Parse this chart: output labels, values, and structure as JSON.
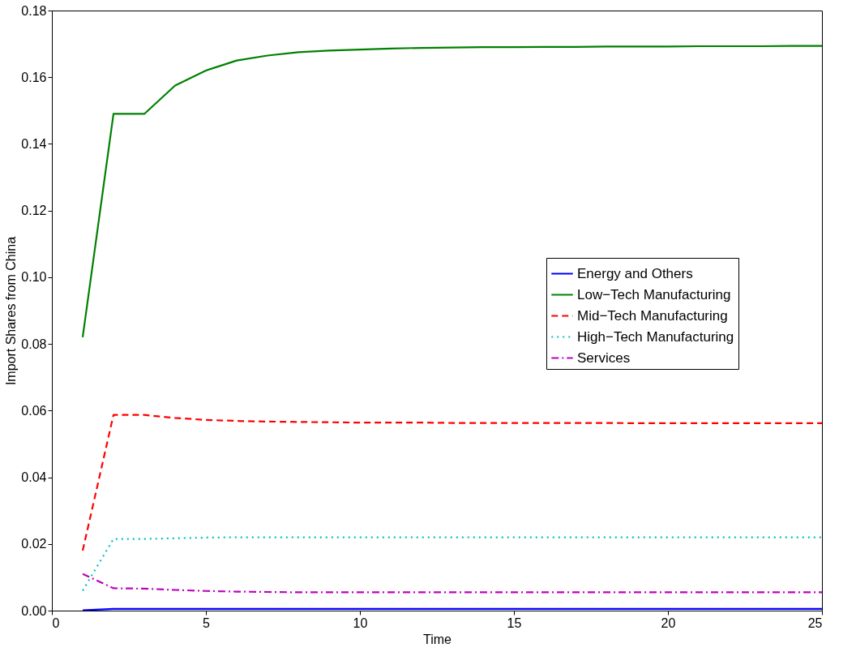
{
  "chart_data": {
    "type": "line",
    "xlabel": "Time",
    "ylabel": "Import Shares from China",
    "x": [
      1,
      2,
      3,
      4,
      5,
      6,
      7,
      8,
      9,
      10,
      11,
      12,
      13,
      14,
      15,
      16,
      17,
      18,
      19,
      20,
      21,
      22,
      23,
      24,
      25
    ],
    "series": [
      {
        "name": "Energy and Others",
        "color": "#0000ff",
        "line_style": "solid",
        "values": [
          0.0001,
          0.0005,
          0.0005,
          0.0005,
          0.0005,
          0.0005,
          0.0005,
          0.0005,
          0.0005,
          0.0005,
          0.0005,
          0.0005,
          0.0005,
          0.0005,
          0.0005,
          0.0005,
          0.0005,
          0.0005,
          0.0005,
          0.0005,
          0.0005,
          0.0005,
          0.0005,
          0.0005,
          0.0005
        ]
      },
      {
        "name": "Low−Tech Manufacturing",
        "color": "#008000",
        "line_style": "solid",
        "values": [
          0.082,
          0.149,
          0.149,
          0.1575,
          0.162,
          0.165,
          0.1665,
          0.1675,
          0.168,
          0.1683,
          0.1686,
          0.1688,
          0.1689,
          0.169,
          0.169,
          0.1691,
          0.1691,
          0.1692,
          0.1692,
          0.1692,
          0.1693,
          0.1693,
          0.1693,
          0.1694,
          0.1694
        ]
      },
      {
        "name": "Mid−Tech Manufacturing",
        "color": "#ff0000",
        "line_style": "dashed",
        "values": [
          0.018,
          0.0587,
          0.0587,
          0.0578,
          0.0572,
          0.0569,
          0.0567,
          0.0566,
          0.0565,
          0.0564,
          0.0564,
          0.0564,
          0.0563,
          0.0563,
          0.0563,
          0.0563,
          0.0563,
          0.0563,
          0.0562,
          0.0562,
          0.0562,
          0.0562,
          0.0562,
          0.0562,
          0.0562
        ]
      },
      {
        "name": "High−Tech Manufacturing",
        "color": "#00bfbf",
        "line_style": "dotted",
        "values": [
          0.006,
          0.0215,
          0.0215,
          0.0217,
          0.0219,
          0.022,
          0.022,
          0.022,
          0.022,
          0.022,
          0.022,
          0.022,
          0.022,
          0.022,
          0.022,
          0.022,
          0.022,
          0.022,
          0.022,
          0.022,
          0.022,
          0.022,
          0.022,
          0.022,
          0.022
        ]
      },
      {
        "name": "Services",
        "color": "#bf00bf",
        "line_style": "dashdot",
        "values": [
          0.011,
          0.0067,
          0.0066,
          0.0062,
          0.0059,
          0.0057,
          0.0056,
          0.0055,
          0.0055,
          0.0055,
          0.0055,
          0.0055,
          0.0055,
          0.0055,
          0.0055,
          0.0055,
          0.0055,
          0.0055,
          0.0055,
          0.0055,
          0.0055,
          0.0055,
          0.0055,
          0.0055,
          0.0055
        ]
      }
    ],
    "xlim": [
      0,
      25
    ],
    "xticks": [
      0,
      5,
      10,
      15,
      20,
      25
    ],
    "ylim": [
      0,
      0.18
    ],
    "yticks": [
      {
        "value": 0,
        "label": "0.00"
      },
      {
        "value": 0.02,
        "label": "0.02"
      },
      {
        "value": 0.04,
        "label": "0.04"
      },
      {
        "value": 0.06,
        "label": "0.06"
      },
      {
        "value": 0.08,
        "label": "0.08"
      },
      {
        "value": 0.1,
        "label": "0.10"
      },
      {
        "value": 0.12,
        "label": "0.12"
      },
      {
        "value": 0.14,
        "label": "0.14"
      },
      {
        "value": 0.16,
        "label": "0.16"
      },
      {
        "value": 0.18,
        "label": "0.18"
      }
    ],
    "legend": "right",
    "grid": false
  }
}
